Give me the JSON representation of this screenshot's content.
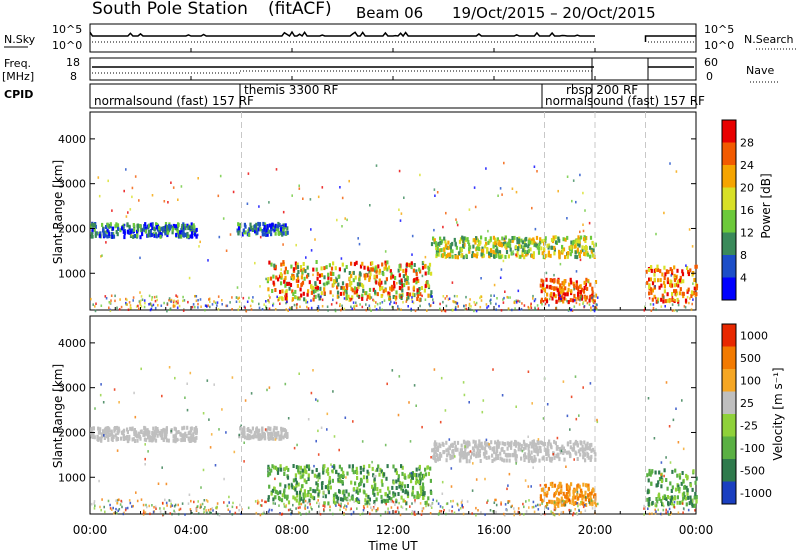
{
  "title": {
    "station": "South Pole Station",
    "mode": "(fitACF)",
    "beam": "Beam 06",
    "date_range": "19/Oct/2015 – 20/Oct/2015"
  },
  "side_labels": {
    "nsky": "N.Sky",
    "freq": "Freq.",
    "freq_unit": "[MHz]",
    "cpid": "CPID",
    "nsearch": "N.Search",
    "nave": "Nave"
  },
  "top_panel_ticks": {
    "noise_left": [
      "10^5",
      "10^0"
    ],
    "noise_right": [
      "10^5",
      "10^0"
    ],
    "freq_left": [
      "18",
      "8"
    ],
    "freq_right": [
      "60",
      "0"
    ]
  },
  "cpid_labels": [
    {
      "text": "normalsound (fast) 157 RF",
      "hour": 0.1
    },
    {
      "text": "themis 3300 RF",
      "hour": 6.1
    },
    {
      "text": "rbsp 200 RF",
      "hour": 18.1
    },
    {
      "text": "normalsound (fast) 157 RF",
      "hour": 18.0
    }
  ],
  "time_axis": {
    "label": "Time UT",
    "ticks": [
      "00:00",
      "04:00",
      "08:00",
      "12:00",
      "16:00",
      "20:00",
      "00:00"
    ]
  },
  "chart_data": [
    {
      "type": "heatmap",
      "name": "power",
      "ylabel": "Slant Range [km]",
      "xlabel": "Time UT",
      "xlim_hours": [
        0,
        24
      ],
      "ylim": [
        180,
        4600
      ],
      "yticks": [
        "1000",
        "2000",
        "3000",
        "4000"
      ],
      "colorbar": {
        "label": "Power [dB]",
        "ticks": [
          "4",
          "8",
          "12",
          "16",
          "20",
          "24",
          "28"
        ],
        "colors": [
          "#0000ff",
          "#1c4ec8",
          "#3a8a5a",
          "#6cc93a",
          "#d8e026",
          "#f5a400",
          "#f25a00",
          "#e80000"
        ]
      },
      "regions": [
        {
          "t": [
            0.0,
            4.2
          ],
          "r": [
            1850,
            2150
          ],
          "level": "blue-green"
        },
        {
          "t": [
            5.8,
            7.8
          ],
          "r": [
            1900,
            2150
          ],
          "level": "blue-green"
        },
        {
          "t": [
            7.0,
            13.5
          ],
          "r": [
            450,
            1300
          ],
          "level": "green-yellow-red"
        },
        {
          "t": [
            13.5,
            20.0
          ],
          "r": [
            1400,
            1850
          ],
          "level": "green-yellow"
        },
        {
          "t": [
            17.8,
            20.0
          ],
          "r": [
            400,
            900
          ],
          "level": "orange-red"
        },
        {
          "t": [
            22.0,
            24.0
          ],
          "r": [
            400,
            1200
          ],
          "level": "yellow-red"
        }
      ]
    },
    {
      "type": "heatmap",
      "name": "velocity",
      "ylabel": "Slant Range [km]",
      "xlabel": "Time UT",
      "xlim_hours": [
        0,
        24
      ],
      "ylim": [
        180,
        4600
      ],
      "yticks": [
        "1000",
        "2000",
        "3000",
        "4000"
      ],
      "colorbar": {
        "label": "Velocity [m s⁻¹]",
        "ticks": [
          "1000",
          "500",
          "100",
          "25",
          "-25",
          "-100",
          "-500",
          "-1000"
        ],
        "colors": [
          "#1a3fc0",
          "#2f7a4c",
          "#5ab043",
          "#8fd13a",
          "#bfbfbf",
          "#f5a623",
          "#f27a00",
          "#e82800"
        ]
      },
      "regions": [
        {
          "t": [
            0.0,
            4.2
          ],
          "r": [
            1850,
            2150
          ],
          "level": "grey"
        },
        {
          "t": [
            5.8,
            7.8
          ],
          "r": [
            1900,
            2150
          ],
          "level": "grey"
        },
        {
          "t": [
            7.0,
            13.5
          ],
          "r": [
            450,
            1300
          ],
          "level": "green"
        },
        {
          "t": [
            13.5,
            20.0
          ],
          "r": [
            1400,
            1850
          ],
          "level": "grey"
        },
        {
          "t": [
            17.8,
            20.0
          ],
          "r": [
            400,
            900
          ],
          "level": "orange"
        },
        {
          "t": [
            22.0,
            24.0
          ],
          "r": [
            400,
            1200
          ],
          "level": "green"
        }
      ]
    }
  ],
  "colors": {
    "axis": "#000000",
    "dashed_marker": "#c8c8c8",
    "background": "#ffffff"
  },
  "dashed_markers_hours": [
    6.0,
    18.0
  ]
}
